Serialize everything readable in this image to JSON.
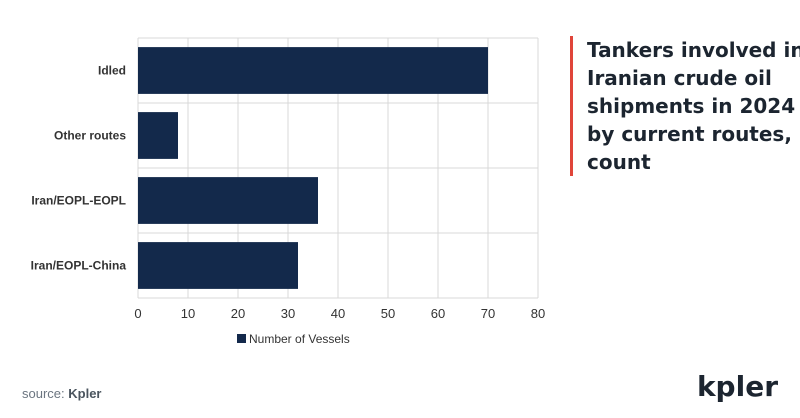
{
  "chart_data": {
    "type": "bar",
    "orientation": "horizontal",
    "title": "Tankers involved in Iranian crude oil shipments in 2024 by current routes, count",
    "categories": [
      "Idled",
      "Other routes",
      "Iran/EOPL-EOPL",
      "Iran/EOPL-China"
    ],
    "series": [
      {
        "name": "Number of Vessels",
        "values": [
          70,
          8,
          36,
          32
        ],
        "color": "#13294b"
      }
    ],
    "xlim": [
      0,
      80
    ],
    "xticks": [
      "0",
      "10",
      "20",
      "30",
      "40",
      "50",
      "60",
      "70",
      "80"
    ],
    "grid": true,
    "legend": "bottom"
  },
  "footer": {
    "source_prefix": "source: ",
    "source_brand": "Kpler",
    "logo": "kpler"
  }
}
